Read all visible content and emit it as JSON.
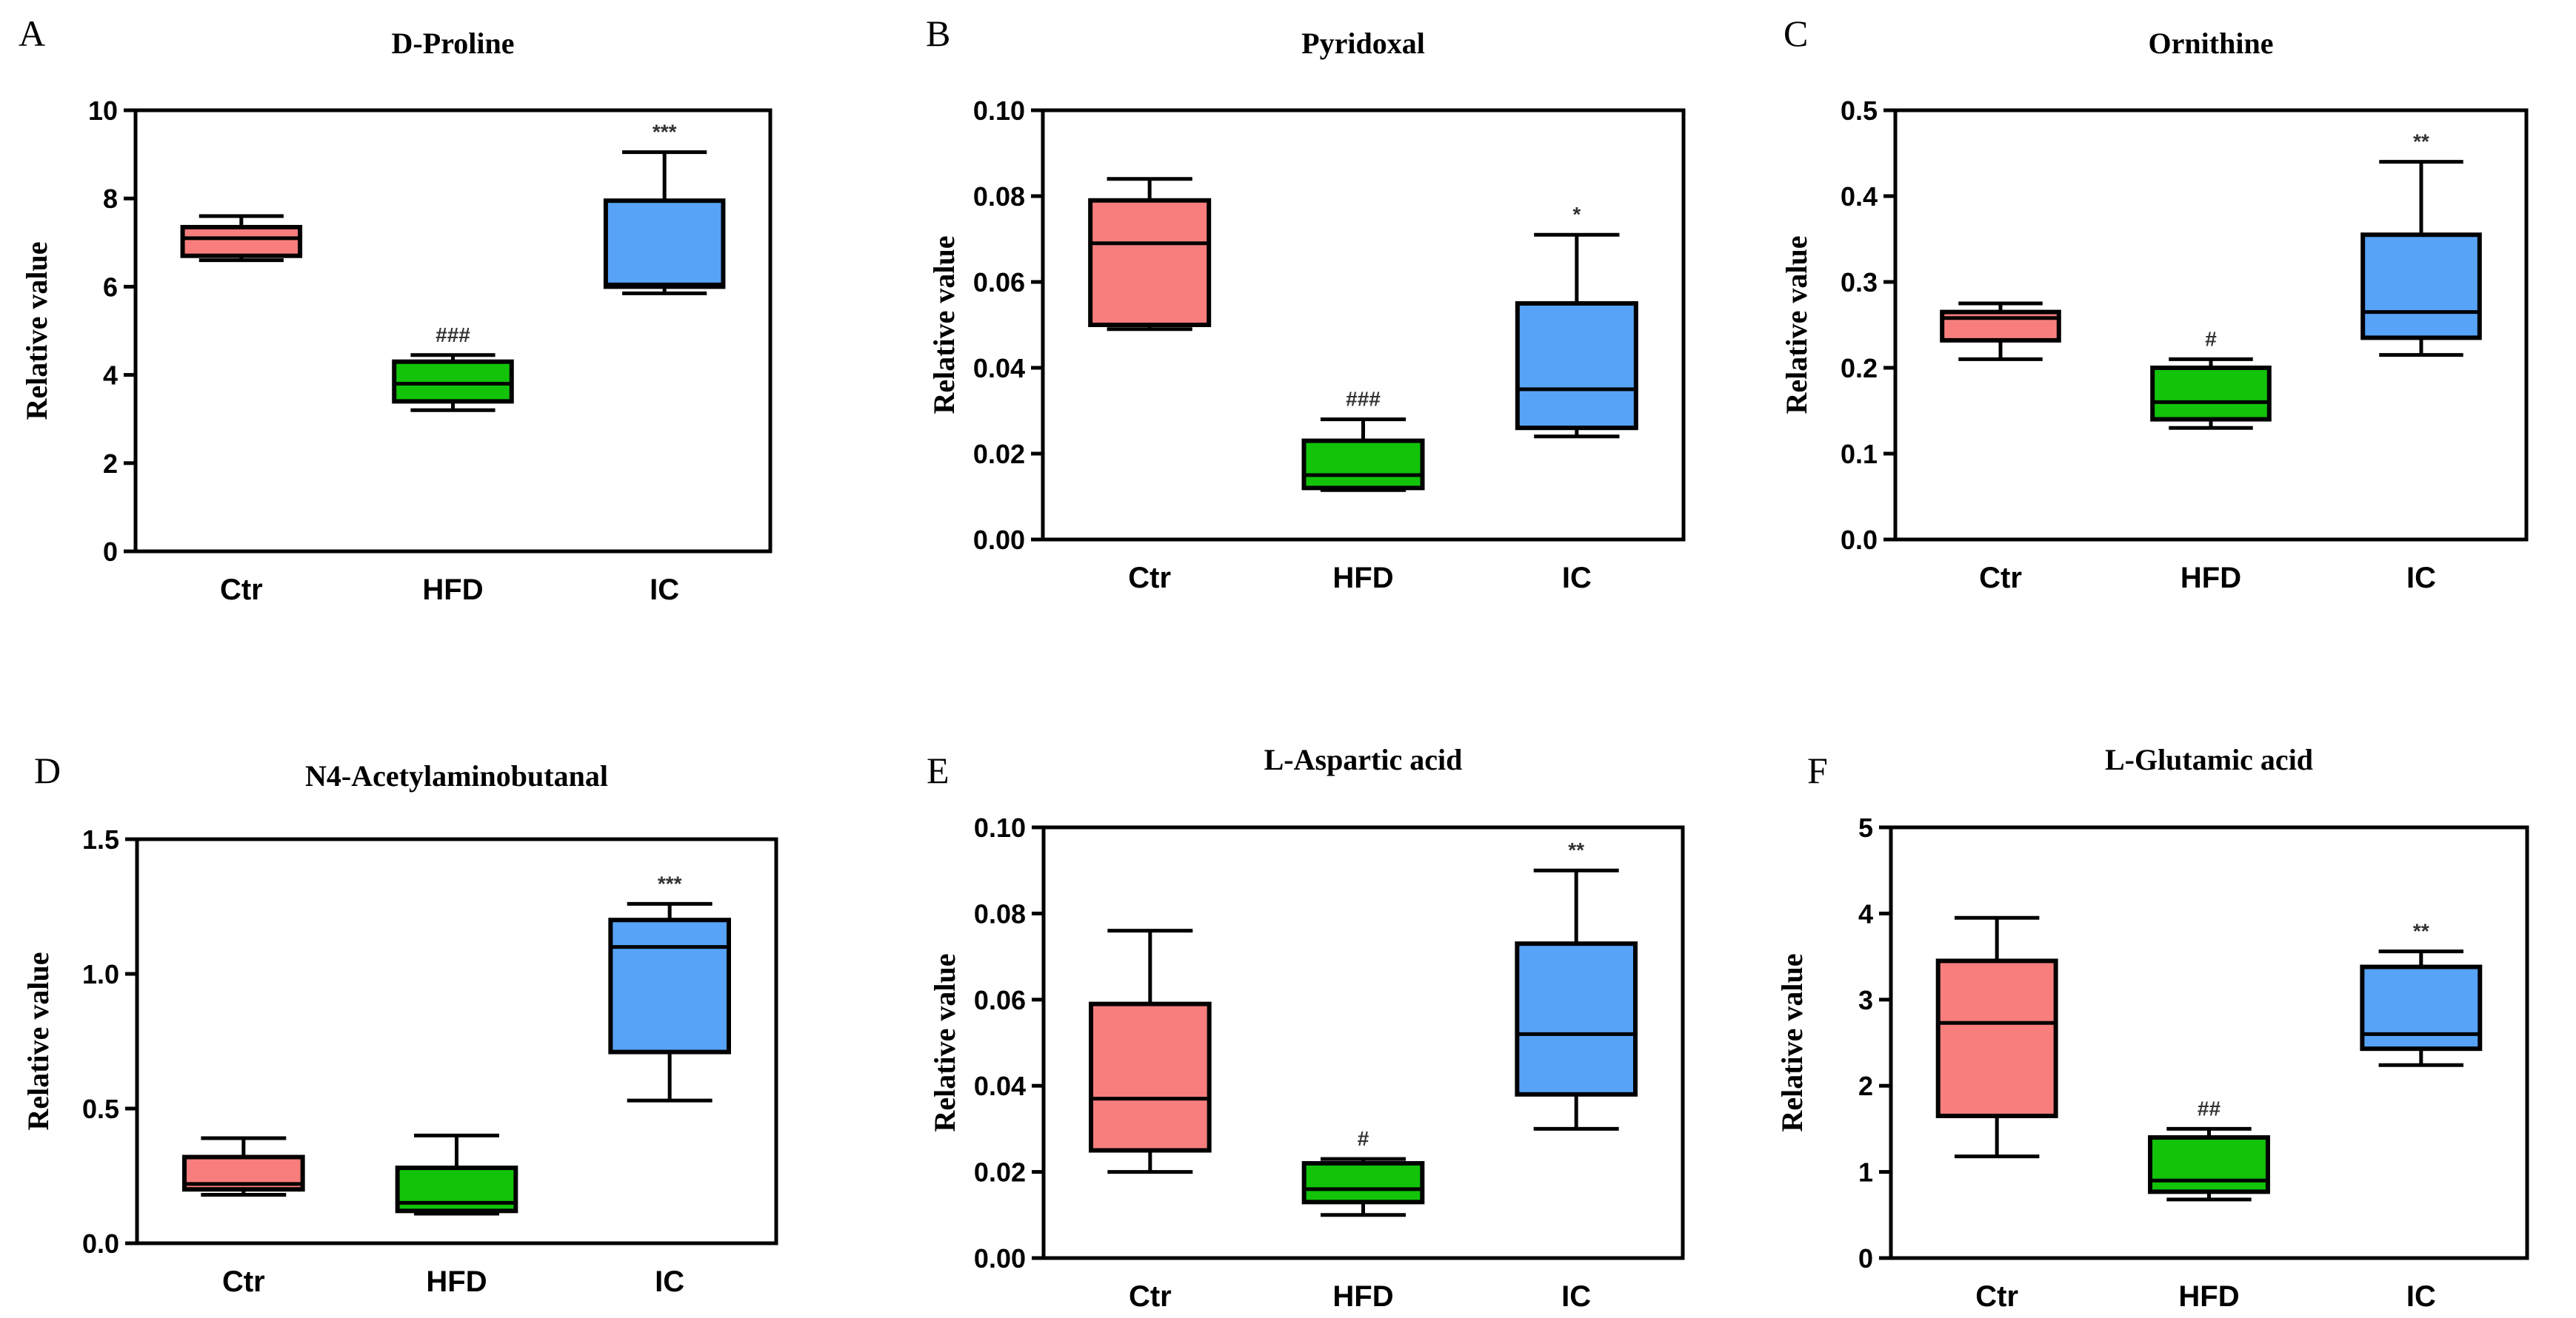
{
  "figure_title": "",
  "colors": {
    "Ctr": "#f87e7e",
    "HFD": "#12c30a",
    "IC": "#57a3f7",
    "outline": "#000000"
  },
  "chart_data": [
    {
      "letter": "A",
      "type": "box",
      "title": "D-Proline",
      "xlabel": "",
      "ylabel": "Relative value",
      "ylim": [
        0,
        10
      ],
      "yticks": [
        "0",
        "2",
        "4",
        "6",
        "8",
        "10"
      ],
      "categories": [
        "Ctr",
        "HFD",
        "IC"
      ],
      "boxes": [
        {
          "group": "Ctr",
          "min": 6.6,
          "q1": 6.7,
          "median": 7.1,
          "q3": 7.35,
          "max": 7.6,
          "sig": ""
        },
        {
          "group": "HFD",
          "min": 3.2,
          "q1": 3.4,
          "median": 3.8,
          "q3": 4.3,
          "max": 4.45,
          "sig": "###"
        },
        {
          "group": "IC",
          "min": 5.85,
          "q1": 6.0,
          "median": 6.05,
          "q3": 7.95,
          "max": 9.05,
          "sig": "***"
        }
      ]
    },
    {
      "letter": "B",
      "type": "box",
      "title": "Pyridoxal",
      "xlabel": "",
      "ylabel": "Relative value",
      "ylim": [
        0,
        0.1
      ],
      "yticks": [
        "0.00",
        "0.02",
        "0.04",
        "0.06",
        "0.08",
        "0.10"
      ],
      "categories": [
        "Ctr",
        "HFD",
        "IC"
      ],
      "boxes": [
        {
          "group": "Ctr",
          "min": 0.049,
          "q1": 0.05,
          "median": 0.069,
          "q3": 0.079,
          "max": 0.084,
          "sig": ""
        },
        {
          "group": "HFD",
          "min": 0.0115,
          "q1": 0.012,
          "median": 0.015,
          "q3": 0.023,
          "max": 0.028,
          "sig": "###"
        },
        {
          "group": "IC",
          "min": 0.024,
          "q1": 0.026,
          "median": 0.035,
          "q3": 0.055,
          "max": 0.071,
          "sig": "*"
        }
      ]
    },
    {
      "letter": "C",
      "type": "box",
      "title": "Ornithine",
      "xlabel": "",
      "ylabel": "Relative value",
      "ylim": [
        0,
        0.5
      ],
      "yticks": [
        "0.0",
        "0.1",
        "0.2",
        "0.3",
        "0.4",
        "0.5"
      ],
      "categories": [
        "Ctr",
        "HFD",
        "IC"
      ],
      "boxes": [
        {
          "group": "Ctr",
          "min": 0.21,
          "q1": 0.232,
          "median": 0.258,
          "q3": 0.265,
          "max": 0.275,
          "sig": ""
        },
        {
          "group": "HFD",
          "min": 0.13,
          "q1": 0.14,
          "median": 0.16,
          "q3": 0.2,
          "max": 0.21,
          "sig": "#"
        },
        {
          "group": "IC",
          "min": 0.215,
          "q1": 0.235,
          "median": 0.265,
          "q3": 0.355,
          "max": 0.44,
          "sig": "**"
        }
      ]
    },
    {
      "letter": "D",
      "type": "box",
      "title": "N4-Acetylaminobutanal",
      "xlabel": "",
      "ylabel": "Relative value",
      "ylim": [
        0,
        1.5
      ],
      "yticks": [
        "0.0",
        "0.5",
        "1.0",
        "1.5"
      ],
      "categories": [
        "Ctr",
        "HFD",
        "IC"
      ],
      "boxes": [
        {
          "group": "Ctr",
          "min": 0.18,
          "q1": 0.2,
          "median": 0.22,
          "q3": 0.32,
          "max": 0.39,
          "sig": ""
        },
        {
          "group": "HFD",
          "min": 0.11,
          "q1": 0.12,
          "median": 0.15,
          "q3": 0.28,
          "max": 0.4,
          "sig": ""
        },
        {
          "group": "IC",
          "min": 0.53,
          "q1": 0.71,
          "median": 1.1,
          "q3": 1.2,
          "max": 1.26,
          "sig": "***"
        }
      ]
    },
    {
      "letter": "E",
      "type": "box",
      "title": "L-Aspartic acid",
      "xlabel": "",
      "ylabel": "Relative value",
      "ylim": [
        0,
        0.1
      ],
      "yticks": [
        "0.00",
        "0.02",
        "0.04",
        "0.06",
        "0.08",
        "0.10"
      ],
      "categories": [
        "Ctr",
        "HFD",
        "IC"
      ],
      "boxes": [
        {
          "group": "Ctr",
          "min": 0.02,
          "q1": 0.025,
          "median": 0.037,
          "q3": 0.059,
          "max": 0.076,
          "sig": ""
        },
        {
          "group": "HFD",
          "min": 0.01,
          "q1": 0.013,
          "median": 0.016,
          "q3": 0.022,
          "max": 0.023,
          "sig": "#"
        },
        {
          "group": "IC",
          "min": 0.03,
          "q1": 0.038,
          "median": 0.052,
          "q3": 0.073,
          "max": 0.09,
          "sig": "**"
        }
      ]
    },
    {
      "letter": "F",
      "type": "box",
      "title": "L-Glutamic acid",
      "xlabel": "",
      "ylabel": "Relative value",
      "ylim": [
        0,
        5
      ],
      "yticks": [
        "0",
        "1",
        "2",
        "3",
        "4",
        "5"
      ],
      "categories": [
        "Ctr",
        "HFD",
        "IC"
      ],
      "boxes": [
        {
          "group": "Ctr",
          "min": 1.18,
          "q1": 1.65,
          "median": 2.73,
          "q3": 3.45,
          "max": 3.95,
          "sig": ""
        },
        {
          "group": "HFD",
          "min": 0.68,
          "q1": 0.77,
          "median": 0.9,
          "q3": 1.4,
          "max": 1.5,
          "sig": "##"
        },
        {
          "group": "IC",
          "min": 2.24,
          "q1": 2.43,
          "median": 2.6,
          "q3": 3.38,
          "max": 3.56,
          "sig": "**"
        }
      ]
    }
  ]
}
